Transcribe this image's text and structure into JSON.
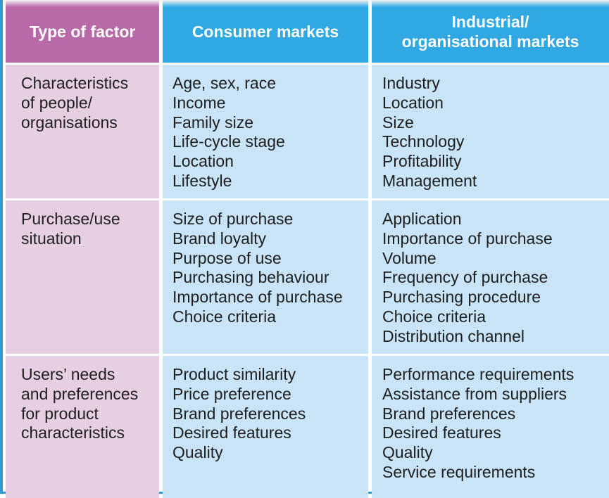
{
  "header": {
    "col1": "Type of factor",
    "col2": "Consumer markets",
    "col3_line1": "Industrial/",
    "col3_line2": "organisational markets"
  },
  "rows": [
    {
      "factor": [
        "Characteristics",
        "of people/",
        "organisations"
      ],
      "consumer": [
        "Age, sex, race",
        "Income",
        "Family size",
        "Life-cycle stage",
        "Location",
        "Lifestyle"
      ],
      "industrial": [
        "Industry",
        "Location",
        "Size",
        "Technology",
        "Profitability",
        "Management"
      ]
    },
    {
      "factor": [
        "Purchase/use",
        "situation"
      ],
      "consumer": [
        "Size of purchase",
        "Brand loyalty",
        "Purpose of use",
        "Purchasing behaviour",
        "Importance of purchase",
        "Choice criteria"
      ],
      "industrial": [
        "Application",
        "Importance of purchase",
        "Volume",
        "Frequency of purchase",
        "Purchasing procedure",
        "Choice criteria",
        "Distribution channel"
      ]
    },
    {
      "factor": [
        "Users’ needs",
        "and preferences",
        "for product",
        "characteristics"
      ],
      "consumer": [
        "Product similarity",
        "Price preference",
        "Brand preferences",
        "Desired features",
        "Quality"
      ],
      "industrial": [
        "Performance requirements",
        "Assistance from suppliers",
        "Brand preferences",
        "Desired features",
        "Quality",
        "Service requirements"
      ]
    }
  ],
  "colors": {
    "header_factor": "#b86aa8",
    "header_markets": "#2fa8e3",
    "factor_cells": "#e6cfe3",
    "market_cells": "#c8e4f6"
  }
}
